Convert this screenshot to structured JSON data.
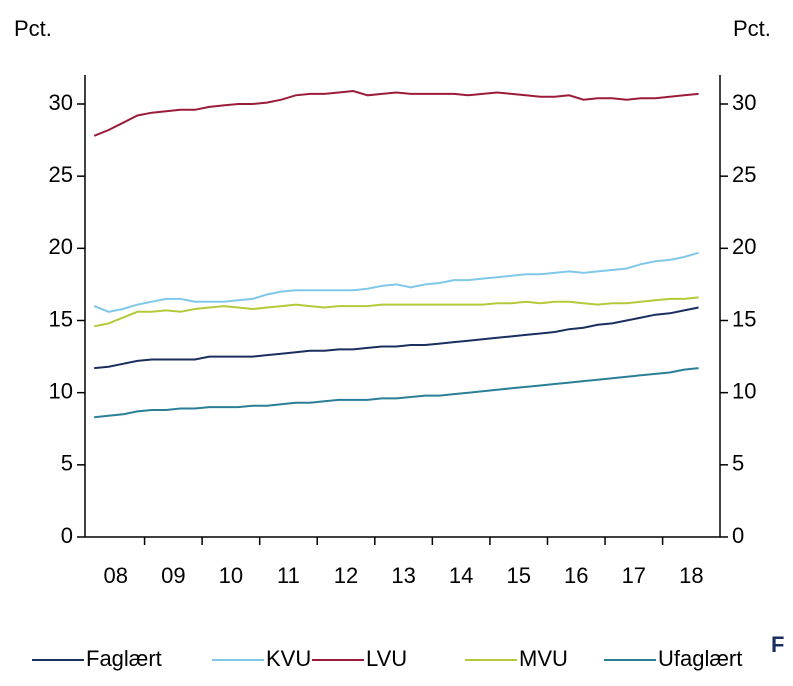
{
  "chart_data": {
    "type": "line",
    "y_label": "Pct.",
    "y2_label": "Pct.",
    "annotation": "F",
    "categories": [
      null,
      "08",
      null,
      null,
      null,
      "09",
      null,
      null,
      null,
      "10",
      null,
      null,
      null,
      "11",
      null,
      null,
      null,
      "12",
      null,
      null,
      null,
      "13",
      null,
      null,
      null,
      "14",
      null,
      null,
      null,
      "15",
      null,
      null,
      null,
      "16",
      null,
      null,
      null,
      "17",
      null,
      null,
      null,
      "18",
      null
    ],
    "ylim": [
      0,
      30
    ],
    "yticks": [
      0,
      5,
      10,
      15,
      20,
      25,
      30
    ],
    "y2lim": [
      0,
      30
    ],
    "y2ticks": [
      0,
      5,
      10,
      15,
      20,
      25,
      30
    ],
    "legend": "bottom",
    "series": [
      {
        "name": "Faglært",
        "color": "#1a2f5e",
        "values": [
          11.7,
          11.8,
          12.0,
          12.2,
          12.3,
          12.3,
          12.3,
          12.3,
          12.5,
          12.5,
          12.5,
          12.5,
          12.6,
          12.7,
          12.8,
          12.9,
          12.9,
          13.0,
          13.0,
          13.1,
          13.2,
          13.2,
          13.3,
          13.3,
          13.4,
          13.5,
          13.6,
          13.7,
          13.8,
          13.9,
          14.0,
          14.1,
          14.2,
          14.4,
          14.5,
          14.7,
          14.8,
          15.0,
          15.2,
          15.4,
          15.5,
          15.7,
          15.9
        ]
      },
      {
        "name": "KVU",
        "color": "#7fc8e8",
        "values": [
          16.0,
          15.6,
          15.8,
          16.1,
          16.3,
          16.5,
          16.5,
          16.3,
          16.3,
          16.3,
          16.4,
          16.5,
          16.8,
          17.0,
          17.1,
          17.1,
          17.1,
          17.1,
          17.1,
          17.2,
          17.4,
          17.5,
          17.3,
          17.5,
          17.6,
          17.8,
          17.8,
          17.9,
          18.0,
          18.1,
          18.2,
          18.2,
          18.3,
          18.4,
          18.3,
          18.4,
          18.5,
          18.6,
          18.9,
          19.1,
          19.2,
          19.4,
          19.7
        ]
      },
      {
        "name": "LVU",
        "color": "#9b1b3a",
        "values": [
          27.8,
          28.2,
          28.7,
          29.2,
          29.4,
          29.5,
          29.6,
          29.6,
          29.8,
          29.9,
          30.0,
          30.0,
          30.1,
          30.3,
          30.6,
          30.7,
          30.7,
          30.8,
          30.9,
          30.6,
          30.7,
          30.8,
          30.7,
          30.7,
          30.7,
          30.7,
          30.6,
          30.7,
          30.8,
          30.7,
          30.6,
          30.5,
          30.5,
          30.6,
          30.3,
          30.4,
          30.4,
          30.3,
          30.4,
          30.4,
          30.5,
          30.6,
          30.7
        ]
      },
      {
        "name": "MVU",
        "color": "#b5c93a",
        "values": [
          14.6,
          14.8,
          15.2,
          15.6,
          15.6,
          15.7,
          15.6,
          15.8,
          15.9,
          16.0,
          15.9,
          15.8,
          15.9,
          16.0,
          16.1,
          16.0,
          15.9,
          16.0,
          16.0,
          16.0,
          16.1,
          16.1,
          16.1,
          16.1,
          16.1,
          16.1,
          16.1,
          16.1,
          16.2,
          16.2,
          16.3,
          16.2,
          16.3,
          16.3,
          16.2,
          16.1,
          16.2,
          16.2,
          16.3,
          16.4,
          16.5,
          16.5,
          16.6
        ]
      },
      {
        "name": "Ufaglært",
        "color": "#2a7f96",
        "values": [
          8.3,
          8.4,
          8.5,
          8.7,
          8.8,
          8.8,
          8.9,
          8.9,
          9.0,
          9.0,
          9.0,
          9.1,
          9.1,
          9.2,
          9.3,
          9.3,
          9.4,
          9.5,
          9.5,
          9.5,
          9.6,
          9.6,
          9.7,
          9.8,
          9.8,
          9.9,
          10.0,
          10.1,
          10.2,
          10.3,
          10.4,
          10.5,
          10.6,
          10.7,
          10.8,
          10.9,
          11.0,
          11.1,
          11.2,
          11.3,
          11.4,
          11.6,
          11.7
        ]
      }
    ]
  }
}
